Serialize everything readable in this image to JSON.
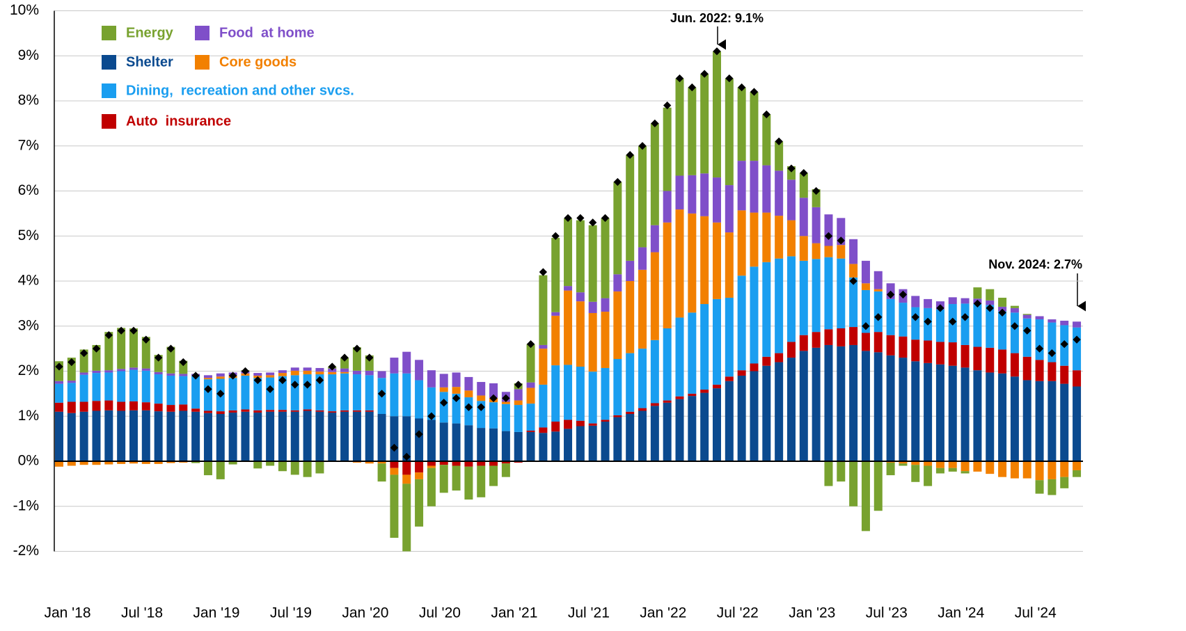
{
  "chart_data": {
    "type": "stacked_bar",
    "categories": [
      "Jan '18",
      null,
      null,
      null,
      null,
      null,
      "Jul '18",
      null,
      null,
      null,
      null,
      null,
      "Jan '19",
      null,
      null,
      null,
      null,
      null,
      "Jul '19",
      null,
      null,
      null,
      null,
      null,
      "Jan '20",
      null,
      null,
      null,
      null,
      null,
      "Jul '20",
      null,
      null,
      null,
      null,
      null,
      "Jan '21",
      null,
      null,
      null,
      null,
      null,
      "Jul '21",
      null,
      null,
      null,
      null,
      null,
      "Jan '22",
      null,
      null,
      null,
      null,
      null,
      "Jul '22",
      null,
      null,
      null,
      null,
      null,
      "Jan '23",
      null,
      null,
      null,
      null,
      null,
      "Jul '23",
      null,
      null,
      null,
      null,
      null,
      "Jan '24",
      null,
      null,
      null,
      null,
      null,
      "Jul '24",
      null,
      null,
      null,
      null
    ],
    "series": [
      {
        "name": "Shelter",
        "color": "#0b4a8f",
        "values": [
          1.1,
          1.07,
          1.1,
          1.12,
          1.13,
          1.12,
          1.13,
          1.13,
          1.11,
          1.1,
          1.12,
          1.1,
          1.07,
          1.05,
          1.08,
          1.1,
          1.08,
          1.1,
          1.1,
          1.1,
          1.12,
          1.1,
          1.08,
          1.1,
          1.1,
          1.1,
          1.05,
          1.0,
          1.0,
          0.95,
          0.92,
          0.86,
          0.84,
          0.8,
          0.74,
          0.73,
          0.67,
          0.65,
          0.65,
          0.63,
          0.66,
          0.72,
          0.78,
          0.79,
          0.88,
          0.98,
          1.05,
          1.12,
          1.23,
          1.3,
          1.38,
          1.45,
          1.52,
          1.62,
          1.78,
          1.9,
          2.0,
          2.12,
          2.2,
          2.3,
          2.45,
          2.52,
          2.58,
          2.55,
          2.58,
          2.45,
          2.42,
          2.35,
          2.3,
          2.22,
          2.18,
          2.15,
          2.12,
          2.08,
          2.02,
          1.97,
          1.95,
          1.88,
          1.8,
          1.78,
          1.78,
          1.72,
          1.66
        ]
      },
      {
        "name": "Auto  insurance",
        "color": "#c00000",
        "values": [
          0.2,
          0.25,
          0.22,
          0.22,
          0.22,
          0.2,
          0.2,
          0.18,
          0.17,
          0.15,
          0.14,
          0.07,
          0.05,
          0.06,
          0.05,
          0.05,
          0.05,
          0.04,
          0.04,
          0.03,
          0.03,
          0.03,
          0.03,
          0.03,
          0.03,
          0.03,
          0.0,
          -0.15,
          -0.3,
          -0.25,
          -0.1,
          -0.08,
          -0.1,
          -0.12,
          -0.1,
          -0.1,
          -0.05,
          -0.03,
          0.03,
          0.12,
          0.22,
          0.2,
          0.12,
          0.05,
          0.04,
          0.04,
          0.05,
          0.06,
          0.06,
          0.05,
          0.06,
          0.05,
          0.07,
          0.08,
          0.1,
          0.12,
          0.17,
          0.2,
          0.2,
          0.35,
          0.35,
          0.35,
          0.35,
          0.4,
          0.4,
          0.4,
          0.45,
          0.45,
          0.47,
          0.48,
          0.5,
          0.5,
          0.52,
          0.5,
          0.52,
          0.55,
          0.53,
          0.52,
          0.52,
          0.47,
          0.42,
          0.4,
          0.36
        ]
      },
      {
        "name": "Dining,  recreation and other svcs.",
        "color": "#1a9ef0",
        "values": [
          0.42,
          0.42,
          0.6,
          0.62,
          0.62,
          0.68,
          0.7,
          0.7,
          0.65,
          0.65,
          0.63,
          0.72,
          0.7,
          0.72,
          0.72,
          0.75,
          0.72,
          0.72,
          0.75,
          0.78,
          0.78,
          0.8,
          0.82,
          0.82,
          0.8,
          0.78,
          0.8,
          0.95,
          0.95,
          0.85,
          0.72,
          0.68,
          0.66,
          0.62,
          0.6,
          0.58,
          0.6,
          0.6,
          0.6,
          0.95,
          1.25,
          1.22,
          1.2,
          1.15,
          1.15,
          1.25,
          1.3,
          1.32,
          1.4,
          1.6,
          1.75,
          1.8,
          1.9,
          1.9,
          1.75,
          2.1,
          2.15,
          2.1,
          2.1,
          1.9,
          1.65,
          1.62,
          1.6,
          1.55,
          1.1,
          0.95,
          0.9,
          0.8,
          0.75,
          0.72,
          0.72,
          0.72,
          0.85,
          0.92,
          0.95,
          0.95,
          0.85,
          0.9,
          0.85,
          0.9,
          0.88,
          0.9,
          0.95
        ]
      },
      {
        "name": "Core goods",
        "color": "#f28000",
        "values": [
          -0.12,
          -0.1,
          -0.08,
          -0.08,
          -0.07,
          -0.06,
          -0.05,
          -0.06,
          -0.06,
          -0.04,
          -0.03,
          0.0,
          0.03,
          0.05,
          0.05,
          0.05,
          0.05,
          0.05,
          0.07,
          0.1,
          0.08,
          0.06,
          0.05,
          0.03,
          -0.03,
          -0.05,
          -0.05,
          -0.15,
          -0.2,
          -0.15,
          -0.05,
          0.1,
          0.15,
          0.15,
          0.12,
          0.1,
          0.05,
          0.1,
          0.35,
          0.8,
          1.1,
          1.65,
          1.45,
          1.3,
          1.25,
          1.5,
          1.6,
          1.75,
          1.95,
          2.35,
          2.4,
          2.2,
          1.95,
          1.7,
          1.45,
          1.45,
          1.2,
          1.1,
          0.95,
          0.8,
          0.55,
          0.35,
          0.25,
          0.3,
          0.3,
          0.15,
          0.05,
          -0.03,
          -0.05,
          -0.08,
          -0.1,
          -0.15,
          -0.15,
          -0.22,
          -0.23,
          -0.28,
          -0.35,
          -0.38,
          -0.38,
          -0.42,
          -0.4,
          -0.35,
          -0.2
        ]
      },
      {
        "name": "Food  at home",
        "color": "#7f4fc9",
        "values": [
          0.06,
          0.05,
          0.05,
          0.05,
          0.05,
          0.05,
          0.05,
          0.05,
          0.05,
          0.05,
          0.05,
          0.05,
          0.06,
          0.07,
          0.07,
          0.05,
          0.06,
          0.06,
          0.06,
          0.07,
          0.07,
          0.08,
          0.08,
          0.08,
          0.08,
          0.1,
          0.15,
          0.35,
          0.48,
          0.45,
          0.38,
          0.3,
          0.32,
          0.3,
          0.3,
          0.32,
          0.22,
          0.25,
          0.12,
          0.08,
          0.08,
          0.1,
          0.2,
          0.25,
          0.3,
          0.38,
          0.45,
          0.5,
          0.6,
          0.7,
          0.75,
          0.85,
          0.95,
          1.0,
          1.05,
          1.1,
          1.15,
          1.05,
          1.0,
          0.9,
          0.85,
          0.8,
          0.7,
          0.6,
          0.55,
          0.5,
          0.4,
          0.35,
          0.3,
          0.25,
          0.2,
          0.18,
          0.15,
          0.12,
          0.12,
          0.1,
          0.1,
          0.1,
          0.08,
          0.07,
          0.07,
          0.1,
          0.13
        ]
      },
      {
        "name": "Energy",
        "color": "#78a22f",
        "values": [
          0.44,
          0.51,
          0.51,
          0.57,
          0.85,
          0.91,
          0.87,
          0.7,
          0.38,
          0.59,
          0.29,
          -0.04,
          -0.31,
          -0.4,
          -0.07,
          0.02,
          -0.16,
          -0.1,
          -0.22,
          -0.3,
          -0.35,
          -0.27,
          0.04,
          0.24,
          0.52,
          0.34,
          -0.4,
          -1.4,
          -1.5,
          -1.05,
          -0.85,
          -0.62,
          -0.55,
          -0.73,
          -0.7,
          -0.45,
          -0.3,
          0.13,
          0.85,
          1.55,
          1.65,
          1.5,
          1.6,
          1.7,
          1.78,
          2.05,
          2.35,
          2.25,
          2.26,
          1.85,
          2.16,
          1.95,
          2.21,
          2.8,
          2.37,
          1.63,
          1.53,
          1.13,
          0.65,
          0.3,
          0.55,
          0.4,
          -0.55,
          -0.45,
          -1.0,
          -1.55,
          -1.1,
          -0.28,
          -0.05,
          -0.38,
          -0.45,
          -0.12,
          -0.08,
          -0.05,
          0.25,
          0.25,
          0.2,
          0.05,
          0.02,
          -0.3,
          -0.35,
          -0.25,
          -0.15
        ]
      }
    ],
    "headline": {
      "color": "#000000",
      "values": [
        2.1,
        2.2,
        2.4,
        2.5,
        2.8,
        2.9,
        2.9,
        2.7,
        2.3,
        2.5,
        2.2,
        1.9,
        1.6,
        1.5,
        1.9,
        2.0,
        1.8,
        1.6,
        1.8,
        1.7,
        1.7,
        1.8,
        2.1,
        2.3,
        2.5,
        2.3,
        1.5,
        0.3,
        0.1,
        0.6,
        1.0,
        1.3,
        1.4,
        1.2,
        1.2,
        1.4,
        1.4,
        1.7,
        2.6,
        4.2,
        5.0,
        5.4,
        5.4,
        5.3,
        5.4,
        6.2,
        6.8,
        7.0,
        7.5,
        7.9,
        8.5,
        8.3,
        8.6,
        9.1,
        8.5,
        8.3,
        8.2,
        7.7,
        7.1,
        6.5,
        6.4,
        6.0,
        5.0,
        4.9,
        4.0,
        3.0,
        3.2,
        3.7,
        3.7,
        3.2,
        3.1,
        3.4,
        3.1,
        3.2,
        3.5,
        3.4,
        3.3,
        3.0,
        2.9,
        2.5,
        2.4,
        2.6,
        2.7
      ]
    },
    "annotations": [
      "Jun. 2022: 9.1%",
      "Nov. 2024: 2.7%"
    ],
    "ylim": [
      -2,
      10
    ],
    "yticks": [
      {
        "value": -2,
        "label": "-2%"
      },
      {
        "value": -1,
        "label": "-1%"
      },
      {
        "value": 0,
        "label": "0%"
      },
      {
        "value": 1,
        "label": "1%"
      },
      {
        "value": 2,
        "label": "2%"
      },
      {
        "value": 3,
        "label": "3%"
      },
      {
        "value": 4,
        "label": "4%"
      },
      {
        "value": 5,
        "label": "5%"
      },
      {
        "value": 6,
        "label": "6%"
      },
      {
        "value": 7,
        "label": "7%"
      },
      {
        "value": 8,
        "label": "8%"
      },
      {
        "value": 9,
        "label": "9%"
      },
      {
        "value": 10,
        "label": "10%"
      }
    ],
    "grid": true
  }
}
